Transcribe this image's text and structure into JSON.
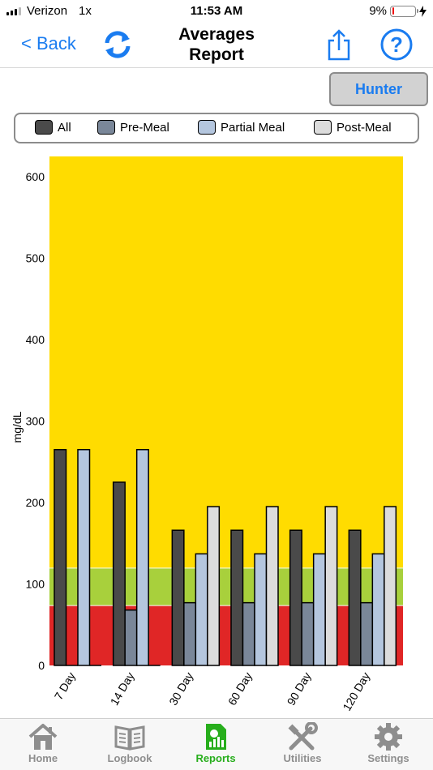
{
  "status": {
    "carrier": "Verizon",
    "network": "1x",
    "time": "11:53 AM",
    "battery": "9%",
    "battery_level": 0.09
  },
  "nav": {
    "back_label": "< Back",
    "title_line1": "Averages",
    "title_line2": "Report",
    "icons": [
      "refresh-icon",
      "share-icon",
      "help-icon"
    ]
  },
  "user_button": "Hunter",
  "legend": [
    {
      "label": "All",
      "color": "#4a4a4a"
    },
    {
      "label": "Pre-Meal",
      "color": "#7a8799"
    },
    {
      "label": "Partial Meal",
      "color": "#b4c6de"
    },
    {
      "label": "Post-Meal",
      "color": "#dcdcdc"
    }
  ],
  "chart_data": {
    "type": "bar",
    "ylabel": "mg/dL",
    "ylim": [
      0,
      625
    ],
    "yticks": [
      0,
      100,
      200,
      300,
      400,
      500,
      600
    ],
    "categories": [
      "7 Day",
      "14 Day",
      "30 Day",
      "60 Day",
      "90 Day",
      "120 Day"
    ],
    "series": [
      {
        "name": "All",
        "color": "#4a4a4a",
        "values": [
          265,
          225,
          166,
          166,
          166,
          166
        ]
      },
      {
        "name": "Pre-Meal",
        "color": "#7a8799",
        "values": [
          0,
          68,
          77,
          77,
          77,
          77
        ]
      },
      {
        "name": "Partial Meal",
        "color": "#b4c6de",
        "values": [
          265,
          265,
          137,
          137,
          137,
          137
        ]
      },
      {
        "name": "Post-Meal",
        "color": "#dcdcdc",
        "values": [
          0,
          0,
          195,
          195,
          195,
          195
        ]
      }
    ],
    "bands": [
      {
        "from": 0,
        "to": 74,
        "color": "#e02626"
      },
      {
        "from": 74,
        "to": 120,
        "color": "#a8d03c"
      },
      {
        "from": 120,
        "to": 625,
        "color": "#ffdc00"
      }
    ]
  },
  "tabs": [
    {
      "label": "Home",
      "icon": "home-icon",
      "active": false
    },
    {
      "label": "Logbook",
      "icon": "logbook-icon",
      "active": false
    },
    {
      "label": "Reports",
      "icon": "reports-icon",
      "active": true
    },
    {
      "label": "Utilities",
      "icon": "utilities-icon",
      "active": false
    },
    {
      "label": "Settings",
      "icon": "settings-icon",
      "active": false
    }
  ]
}
